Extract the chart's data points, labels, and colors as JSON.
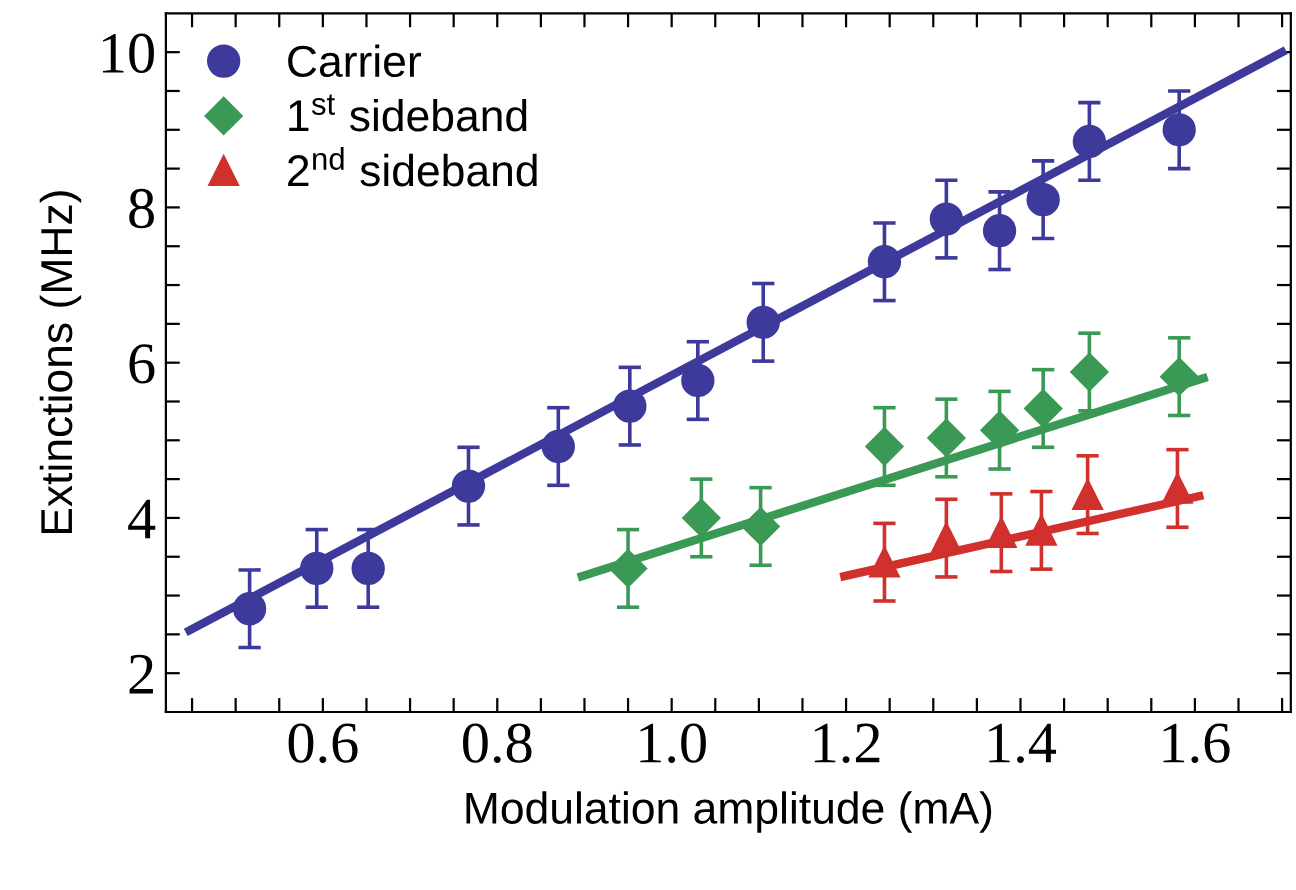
{
  "chart_data": {
    "type": "scatter",
    "xlabel": "Modulation amplitude (mA)",
    "ylabel": "Extinctions (MHz)",
    "xlim": [
      0.42,
      1.71
    ],
    "ylim": [
      1.5,
      10.5
    ],
    "xticks": [
      {
        "value": 0.45,
        "label": null
      },
      {
        "value": 0.5,
        "label": null
      },
      {
        "value": 0.55,
        "label": null
      },
      {
        "value": 0.6,
        "label": "0.6"
      },
      {
        "value": 0.65,
        "label": null
      },
      {
        "value": 0.7,
        "label": null
      },
      {
        "value": 0.75,
        "label": null
      },
      {
        "value": 0.8,
        "label": "0.8"
      },
      {
        "value": 0.85,
        "label": null
      },
      {
        "value": 0.9,
        "label": null
      },
      {
        "value": 0.95,
        "label": null
      },
      {
        "value": 1.0,
        "label": "1.0"
      },
      {
        "value": 1.05,
        "label": null
      },
      {
        "value": 1.1,
        "label": null
      },
      {
        "value": 1.15,
        "label": null
      },
      {
        "value": 1.2,
        "label": "1.2"
      },
      {
        "value": 1.25,
        "label": null
      },
      {
        "value": 1.3,
        "label": null
      },
      {
        "value": 1.35,
        "label": null
      },
      {
        "value": 1.4,
        "label": "1.4"
      },
      {
        "value": 1.45,
        "label": null
      },
      {
        "value": 1.5,
        "label": null
      },
      {
        "value": 1.55,
        "label": null
      },
      {
        "value": 1.6,
        "label": "1.6"
      },
      {
        "value": 1.65,
        "label": null
      },
      {
        "value": 1.7,
        "label": null
      }
    ],
    "yticks": [
      2,
      {
        "value": 2.5,
        "label": null
      },
      {
        "value": 3,
        "label": null
      },
      {
        "value": 3.5,
        "label": null
      },
      4,
      {
        "value": 4.5,
        "label": null
      },
      {
        "value": 5,
        "label": null
      },
      {
        "value": 5.5,
        "label": null
      },
      6,
      {
        "value": 6.5,
        "label": null
      },
      {
        "value": 7,
        "label": null
      },
      {
        "value": 7.5,
        "label": null
      },
      8,
      {
        "value": 8.5,
        "label": null
      },
      {
        "value": 9,
        "label": null
      },
      {
        "value": 9.5,
        "label": null
      },
      10
    ],
    "grid": false,
    "legend": "top left",
    "series": [
      {
        "name": "Carrier",
        "color": "#3d3a9c",
        "marker": "circle",
        "x": [
          0.516,
          0.593,
          0.652,
          0.767,
          0.87,
          0.952,
          1.03,
          1.105,
          1.244,
          1.315,
          1.376,
          1.426,
          1.479,
          1.582
        ],
        "values": [
          2.83,
          3.35,
          3.35,
          4.41,
          4.92,
          5.44,
          5.77,
          6.52,
          7.3,
          7.85,
          7.7,
          8.1,
          8.85,
          9.0
        ],
        "errors": [
          0.5,
          0.5,
          0.5,
          0.5,
          0.5,
          0.5,
          0.5,
          0.5,
          0.5,
          0.5,
          0.5,
          0.5,
          0.5,
          0.5
        ]
      },
      {
        "name": "1$^{st}$ sideband",
        "color": "#3a9a55",
        "marker": "diamond",
        "x": [
          0.95,
          1.034,
          1.102,
          1.244,
          1.315,
          1.376,
          1.426,
          1.479,
          1.582
        ],
        "values": [
          3.35,
          4.0,
          3.89,
          4.92,
          5.03,
          5.13,
          5.41,
          5.88,
          5.82
        ],
        "errors": [
          0.5,
          0.5,
          0.5,
          0.5,
          0.5,
          0.5,
          0.5,
          0.5,
          0.5
        ]
      },
      {
        "name": "2$^{nd}$ sideband",
        "color": "#d0312d",
        "marker": "triangle",
        "x": [
          1.244,
          1.315,
          1.378,
          1.424,
          1.477,
          1.58
        ],
        "values": [
          3.43,
          3.74,
          3.81,
          3.84,
          4.3,
          4.38
        ],
        "errors": [
          0.5,
          0.5,
          0.5,
          0.5,
          0.5,
          0.5
        ]
      },
      {
        "type": "line",
        "color": "#3d3a9c",
        "x": [
          0.447,
          1.7
        ],
        "values": [
          2.55,
          10.0
        ]
      },
      {
        "type": "line",
        "color": "#3a9a55",
        "x": [
          0.897,
          1.61
        ],
        "values": [
          3.25,
          5.8
        ]
      },
      {
        "type": "line",
        "color": "#d0312d",
        "x": [
          1.198,
          1.605
        ],
        "values": [
          3.25,
          4.28
        ]
      }
    ]
  }
}
